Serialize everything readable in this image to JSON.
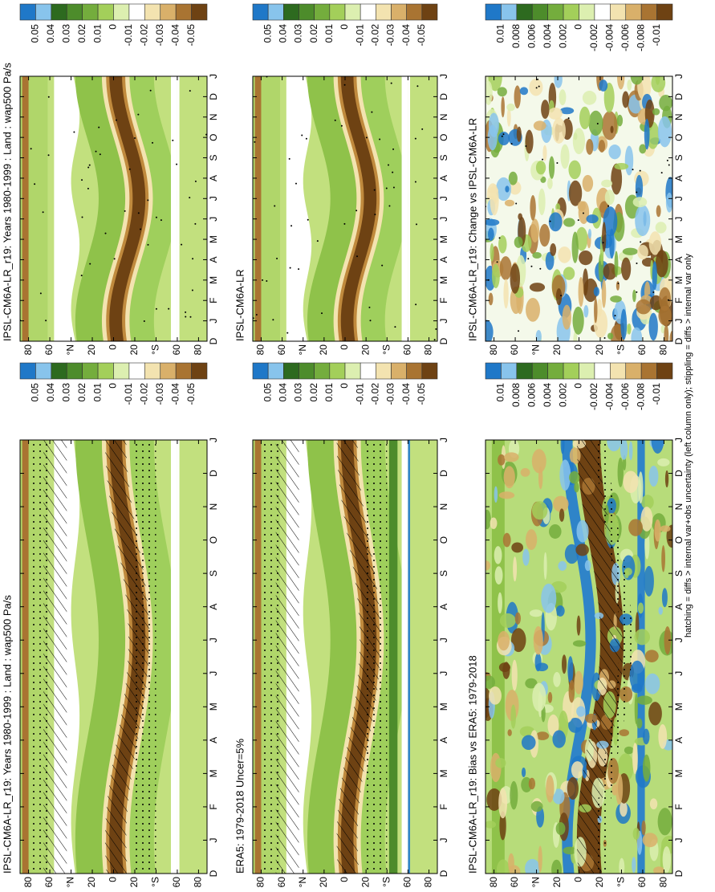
{
  "panels": [
    {
      "title": "IPSL-CM6A-LR_r19: Years 1980-1999 : Land : wap500 Pa/s",
      "colorbar": [
        "0.05",
        "0.04",
        "0.03",
        "0.02",
        "0.01",
        "0",
        "-0.01",
        "-0.02",
        "-0.03",
        "-0.04",
        "-0.05"
      ]
    },
    {
      "title": "IPSL-CM6A-LR",
      "colorbar": [
        "0.05",
        "0.04",
        "0.03",
        "0.02",
        "0.01",
        "0",
        "-0.01",
        "-0.02",
        "-0.03",
        "-0.04",
        "-0.05"
      ]
    },
    {
      "title": "IPSL-CM6A-LR_r19: Change vs IPSL-CM6A-LR",
      "colorbar": [
        "0.01",
        "0.008",
        "0.006",
        "0.004",
        "0.002",
        "0",
        "-0.002",
        "-0.004",
        "-0.006",
        "-0.008",
        "-0.01"
      ]
    },
    {
      "title": "IPSL-CM6A-LR_r19: Years 1980-1999 : Land : wap500 Pa/s",
      "colorbar": [
        "0.05",
        "0.04",
        "0.03",
        "0.02",
        "0.01",
        "0",
        "-0.01",
        "-0.02",
        "-0.03",
        "-0.04",
        "-0.05"
      ]
    },
    {
      "title": "ERA5: 1979-2018 Uncer=5%",
      "colorbar": [
        "0.05",
        "0.04",
        "0.03",
        "0.02",
        "0.01",
        "0",
        "-0.01",
        "-0.02",
        "-0.03",
        "-0.04",
        "-0.05"
      ]
    },
    {
      "title": "IPSL-CM6A-LR_r19: Bias vs ERA5: 1979-2018",
      "colorbar": [
        "0.01",
        "0.008",
        "0.006",
        "0.004",
        "0.002",
        "0",
        "-0.002",
        "-0.004",
        "-0.006",
        "-0.008",
        "-0.01"
      ]
    }
  ],
  "lat_labels": [
    "80",
    "60",
    "°N",
    "20",
    "0",
    "20",
    "°S",
    "60",
    "80"
  ],
  "month_labels": [
    "D",
    "J",
    "F",
    "M",
    "A",
    "M",
    "J",
    "J",
    "A",
    "S",
    "O",
    "N",
    "D",
    "J"
  ],
  "footnote": "hatching = diffs > internal var+obs uncertainty (left column only); stippling = diffs > internal var only"
}
